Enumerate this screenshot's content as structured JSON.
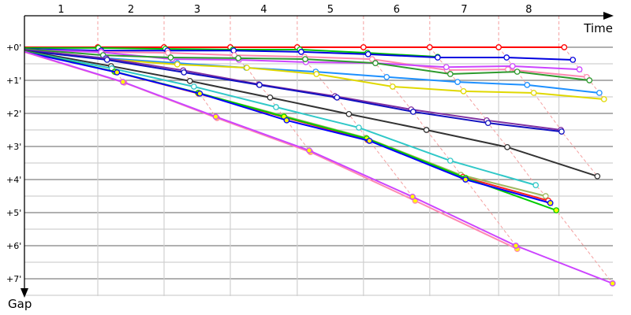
{
  "chart_data": {
    "type": "line",
    "xlabel": "Time",
    "ylabel": "Gap",
    "x_tick_labels": [
      "1",
      "2",
      "3",
      "4",
      "5",
      "6",
      "7",
      "8"
    ],
    "lap_boundaries": [
      1.0,
      2.0,
      3.0,
      4.01,
      5.01,
      6.01,
      7.05,
      7.96
    ],
    "y_tick_labels": [
      "+0'",
      "+1'",
      "+2'",
      "+3'",
      "+4'",
      "+5'",
      "+6'",
      "+7'"
    ],
    "y_ticks": [
      0,
      1,
      2,
      3,
      4,
      5,
      6,
      7
    ],
    "xlim": [
      -0.11,
      8.9
    ],
    "ylim": [
      0,
      7.6
    ],
    "y_inverted": true,
    "grid": true,
    "lap_connector_color": "#f4a0a0",
    "series": [
      {
        "color": "#ff0000",
        "marker_fill": "#ffffff",
        "points": [
          [
            -0.11,
            0
          ],
          [
            1.0,
            0
          ],
          [
            2.0,
            0
          ],
          [
            3.0,
            0
          ],
          [
            4.01,
            0
          ],
          [
            5.01,
            0
          ],
          [
            6.01,
            0
          ],
          [
            7.05,
            0
          ],
          [
            8.04,
            0
          ]
        ]
      },
      {
        "color": "#00c000",
        "marker_fill": "#ffffff",
        "points": [
          [
            -0.11,
            0.02
          ],
          [
            1.01,
            0.02
          ],
          [
            2.02,
            0.05
          ],
          [
            3.04,
            0.07
          ],
          [
            4.05,
            0.07
          ],
          [
            5.07,
            0.17
          ],
          [
            6.13,
            0.29
          ]
        ]
      },
      {
        "color": "#0000e0",
        "marker_fill": "#ffffff",
        "points": [
          [
            -0.11,
            0.05
          ],
          [
            1.05,
            0.1
          ],
          [
            2.05,
            0.1
          ],
          [
            3.05,
            0.1
          ],
          [
            4.07,
            0.14
          ],
          [
            5.08,
            0.21
          ],
          [
            6.13,
            0.31
          ],
          [
            7.17,
            0.31
          ],
          [
            8.17,
            0.38
          ]
        ]
      },
      {
        "color": "#ff88b0",
        "marker_fill": "#ffffff",
        "points": [
          [
            -0.11,
            0.07
          ],
          [
            1.05,
            0.14
          ],
          [
            2.06,
            0.17
          ],
          [
            3.06,
            0.24
          ],
          [
            4.12,
            0.29
          ],
          [
            5.14,
            0.36
          ],
          [
            6.27,
            0.69
          ],
          [
            7.19,
            0.67
          ],
          [
            8.38,
            0.9
          ]
        ]
      },
      {
        "color": "#cc44ff",
        "marker_fill": "#ffffff",
        "points": [
          [
            -0.11,
            0.07
          ],
          [
            1.05,
            0.15
          ],
          [
            2.12,
            0.36
          ],
          [
            3.13,
            0.38
          ],
          [
            4.14,
            0.45
          ],
          [
            5.19,
            0.48
          ],
          [
            6.26,
            0.6
          ],
          [
            7.26,
            0.57
          ],
          [
            8.27,
            0.67
          ]
        ]
      },
      {
        "color": "#2e9a2e",
        "marker_fill": "#ffffff",
        "points": [
          [
            -0.11,
            0.05
          ],
          [
            1.08,
            0.24
          ],
          [
            2.1,
            0.31
          ],
          [
            3.12,
            0.33
          ],
          [
            4.13,
            0.36
          ],
          [
            5.19,
            0.48
          ],
          [
            6.32,
            0.81
          ],
          [
            7.33,
            0.74
          ],
          [
            8.42,
            1.0
          ]
        ]
      },
      {
        "color": "#1e90ff",
        "marker_fill": "#ffffff",
        "points": [
          [
            -0.11,
            0.1
          ],
          [
            1.12,
            0.33
          ],
          [
            2.2,
            0.48
          ],
          [
            3.24,
            0.62
          ],
          [
            4.29,
            0.74
          ],
          [
            5.36,
            0.9
          ],
          [
            6.43,
            1.05
          ],
          [
            7.48,
            1.14
          ],
          [
            8.57,
            1.38
          ]
        ]
      },
      {
        "color": "#e0d800",
        "marker_fill": "#ffffff",
        "points": [
          [
            -0.11,
            0.1
          ],
          [
            1.14,
            0.36
          ],
          [
            2.2,
            0.52
          ],
          [
            3.25,
            0.62
          ],
          [
            4.3,
            0.81
          ],
          [
            5.45,
            1.19
          ],
          [
            6.52,
            1.33
          ],
          [
            7.58,
            1.38
          ],
          [
            8.64,
            1.57
          ]
        ]
      },
      {
        "color": "#8030a0",
        "marker_fill": "#ffffff",
        "points": [
          [
            -0.11,
            0.07
          ],
          [
            1.13,
            0.34
          ],
          [
            2.29,
            0.7
          ],
          [
            3.43,
            1.12
          ],
          [
            4.58,
            1.48
          ],
          [
            5.73,
            1.88
          ],
          [
            6.87,
            2.21
          ],
          [
            7.99,
            2.5
          ]
        ]
      },
      {
        "color": "#1010c0",
        "marker_fill": "#ffffff",
        "points": [
          [
            -0.11,
            0.1
          ],
          [
            1.14,
            0.38
          ],
          [
            2.3,
            0.76
          ],
          [
            3.44,
            1.14
          ],
          [
            4.61,
            1.52
          ],
          [
            5.76,
            1.95
          ],
          [
            6.89,
            2.29
          ],
          [
            8.0,
            2.55
          ]
        ]
      },
      {
        "color": "#333333",
        "marker_fill": "#ffffff",
        "points": [
          [
            -0.11,
            0.1
          ],
          [
            1.2,
            0.57
          ],
          [
            2.39,
            1.02
          ],
          [
            3.6,
            1.52
          ],
          [
            4.79,
            2.02
          ],
          [
            5.96,
            2.5
          ],
          [
            7.18,
            3.02
          ],
          [
            8.54,
            3.9
          ]
        ]
      },
      {
        "color": "#30c8c8",
        "marker_fill": "#ffffff",
        "points": [
          [
            -0.11,
            0.12
          ],
          [
            1.21,
            0.64
          ],
          [
            2.45,
            1.19
          ],
          [
            3.69,
            1.81
          ],
          [
            4.94,
            2.43
          ],
          [
            6.32,
            3.43
          ],
          [
            7.61,
            4.17
          ]
        ]
      },
      {
        "color": "#a0b860",
        "marker_fill": "#ffffff",
        "points": [
          [
            -0.11,
            0.12
          ],
          [
            1.25,
            0.74
          ],
          [
            2.51,
            1.38
          ],
          [
            3.8,
            2.07
          ],
          [
            5.05,
            2.74
          ],
          [
            6.48,
            3.86
          ],
          [
            7.76,
            4.5
          ]
        ]
      },
      {
        "color": "#ff2020",
        "marker_fill": "#ffffff",
        "points": [
          [
            -0.11,
            0.12
          ],
          [
            1.27,
            0.75
          ],
          [
            2.52,
            1.4
          ],
          [
            3.82,
            2.12
          ],
          [
            5.07,
            2.8
          ],
          [
            6.51,
            3.92
          ],
          [
            7.8,
            4.64
          ]
        ]
      },
      {
        "color": "#00cc00",
        "marker_fill": "#ffff00",
        "points": [
          [
            -0.11,
            0.12
          ],
          [
            1.26,
            0.74
          ],
          [
            2.52,
            1.38
          ],
          [
            3.81,
            2.1
          ],
          [
            5.06,
            2.76
          ],
          [
            6.55,
            3.95
          ],
          [
            7.92,
            4.93
          ]
        ]
      },
      {
        "color": "#0000ff",
        "marker_fill": "#ffff00",
        "points": [
          [
            -0.11,
            0.14
          ],
          [
            1.29,
            0.76
          ],
          [
            2.54,
            1.4
          ],
          [
            3.85,
            2.21
          ],
          [
            5.1,
            2.83
          ],
          [
            6.55,
            4.0
          ],
          [
            7.83,
            4.71
          ]
        ]
      },
      {
        "color": "#ff88b0",
        "marker_fill": "#ffff00",
        "points": [
          [
            -0.11,
            0.14
          ],
          [
            1.4,
            1.07
          ],
          [
            2.8,
            2.14
          ],
          [
            4.21,
            3.17
          ],
          [
            5.79,
            4.64
          ],
          [
            7.33,
            6.1
          ]
        ]
      },
      {
        "color": "#cc44ff",
        "marker_fill": "#ffff00",
        "points": [
          [
            -0.11,
            0.13
          ],
          [
            1.38,
            1.05
          ],
          [
            2.78,
            2.1
          ],
          [
            4.19,
            3.12
          ],
          [
            5.75,
            4.52
          ],
          [
            7.31,
            6.0
          ],
          [
            8.77,
            7.14
          ]
        ]
      }
    ]
  }
}
